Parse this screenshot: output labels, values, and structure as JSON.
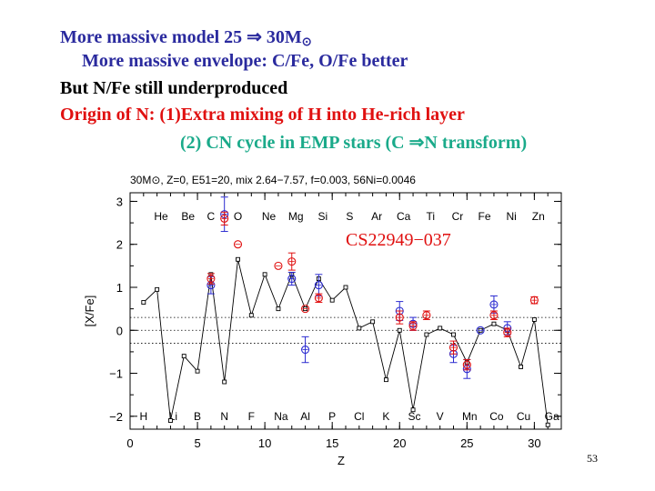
{
  "slide": {
    "line1": "More massive model 25 ⇒ 30M",
    "line1_sym": "⊙",
    "line2": "More massive envelope: C/Fe, O/Fe better",
    "line3": "But N/Fe still underproduced",
    "line4": "Origin of N: (1)Extra mixing of H into He-rich layer",
    "line5": "(2) CN cycle in EMP stars (C ⇒N transform)",
    "page_number": "53",
    "colors": {
      "blue_text": "#2a2a9e",
      "red_text": "#e01010",
      "teal_text": "#1aaa8a"
    }
  },
  "chart_data": {
    "type": "scatter",
    "title": "30M⊙, Z=0, E51=20, mix 2.64−7.57, f=0.003, 56Ni=0.0046",
    "annotation": "CS22949−037",
    "xlabel": "Z",
    "ylabel": "[X/Fe]",
    "xlim": [
      0,
      32
    ],
    "ylim": [
      -2.3,
      3.2
    ],
    "xticks": [
      0,
      5,
      10,
      15,
      20,
      25,
      30
    ],
    "yticks": [
      -2,
      -1,
      0,
      1,
      2,
      3
    ],
    "reference_lines_y": [
      -0.3,
      0,
      0.3
    ],
    "top_labels": [
      {
        "text": "He",
        "z": 2.3
      },
      {
        "text": "Be",
        "z": 4.3
      },
      {
        "text": "C",
        "z": 6
      },
      {
        "text": "O",
        "z": 8
      },
      {
        "text": "Ne",
        "z": 10.3
      },
      {
        "text": "Mg",
        "z": 12.3
      },
      {
        "text": "Si",
        "z": 14.3
      },
      {
        "text": "S",
        "z": 16.3
      },
      {
        "text": "Ar",
        "z": 18.3
      },
      {
        "text": "Ca",
        "z": 20.3
      },
      {
        "text": "Ti",
        "z": 22.3
      },
      {
        "text": "Cr",
        "z": 24.3
      },
      {
        "text": "Fe",
        "z": 26.3
      },
      {
        "text": "Ni",
        "z": 28.3
      },
      {
        "text": "Zn",
        "z": 30.3
      }
    ],
    "bottom_labels": [
      {
        "text": "H",
        "z": 1
      },
      {
        "text": "Li",
        "z": 3.2
      },
      {
        "text": "B",
        "z": 5
      },
      {
        "text": "N",
        "z": 7
      },
      {
        "text": "F",
        "z": 9
      },
      {
        "text": "Na",
        "z": 11.2
      },
      {
        "text": "Al",
        "z": 13
      },
      {
        "text": "P",
        "z": 15
      },
      {
        "text": "Cl",
        "z": 17
      },
      {
        "text": "K",
        "z": 19
      },
      {
        "text": "Sc",
        "z": 21.1
      },
      {
        "text": "V",
        "z": 23
      },
      {
        "text": "Mn",
        "z": 25.2
      },
      {
        "text": "Co",
        "z": 27.2
      },
      {
        "text": "Cu",
        "z": 29.2
      },
      {
        "text": "Ga",
        "z": 31.3
      }
    ],
    "series": [
      {
        "name": "model",
        "x": [
          1,
          2,
          3,
          4,
          5,
          6,
          7,
          8,
          9,
          10,
          11,
          12,
          13,
          14,
          15,
          16,
          17,
          18,
          19,
          20,
          21,
          22,
          23,
          24,
          25,
          26,
          27,
          28,
          29,
          30,
          31
        ],
        "y": [
          0.65,
          0.95,
          -2.1,
          -0.6,
          -0.95,
          1.3,
          -1.2,
          1.65,
          0.35,
          1.3,
          0.5,
          1.3,
          0.5,
          1.2,
          0.7,
          1.0,
          0.05,
          0.2,
          -1.15,
          0.0,
          -1.85,
          -0.1,
          0.05,
          -0.1,
          -0.75,
          0.0,
          0.15,
          0.0,
          -0.85,
          0.25,
          -2.2
        ]
      },
      {
        "name": "obs-blue",
        "points": [
          {
            "z": 6,
            "y": 1.05,
            "err": 0.2
          },
          {
            "z": 7,
            "y": 2.7,
            "err": 0.4
          },
          {
            "z": 12,
            "y": 1.2,
            "err": 0.15
          },
          {
            "z": 13,
            "y": -0.45,
            "err": 0.3
          },
          {
            "z": 14,
            "y": 1.05,
            "err": 0.25
          },
          {
            "z": 20,
            "y": 0.45,
            "err": 0.22
          },
          {
            "z": 21,
            "y": 0.15,
            "err": 0.15
          },
          {
            "z": 24,
            "y": -0.55,
            "err": 0.2
          },
          {
            "z": 25,
            "y": -0.9,
            "err": 0.22
          },
          {
            "z": 26,
            "y": 0.0,
            "err": 0.0
          },
          {
            "z": 27,
            "y": 0.6,
            "err": 0.2
          },
          {
            "z": 28,
            "y": 0.05,
            "err": 0.15
          }
        ]
      },
      {
        "name": "obs-red",
        "points": [
          {
            "z": 6,
            "y": 1.2,
            "err": 0.12
          },
          {
            "z": 7,
            "y": 2.6,
            "err": 0.15
          },
          {
            "z": 8,
            "y": 2.0,
            "err": 0.0
          },
          {
            "z": 11,
            "y": 1.5,
            "err": 0.0
          },
          {
            "z": 12,
            "y": 1.6,
            "err": 0.2
          },
          {
            "z": 13,
            "y": 0.5,
            "err": 0.0
          },
          {
            "z": 14,
            "y": 0.75,
            "err": 0.1
          },
          {
            "z": 20,
            "y": 0.3,
            "err": 0.15
          },
          {
            "z": 21,
            "y": 0.1,
            "err": 0.1
          },
          {
            "z": 22,
            "y": 0.35,
            "err": 0.1
          },
          {
            "z": 24,
            "y": -0.4,
            "err": 0.15
          },
          {
            "z": 25,
            "y": -0.8,
            "err": 0.12
          },
          {
            "z": 27,
            "y": 0.35,
            "err": 0.1
          },
          {
            "z": 28,
            "y": -0.05,
            "err": 0.1
          },
          {
            "z": 30,
            "y": 0.7,
            "err": 0.08
          }
        ]
      }
    ]
  }
}
